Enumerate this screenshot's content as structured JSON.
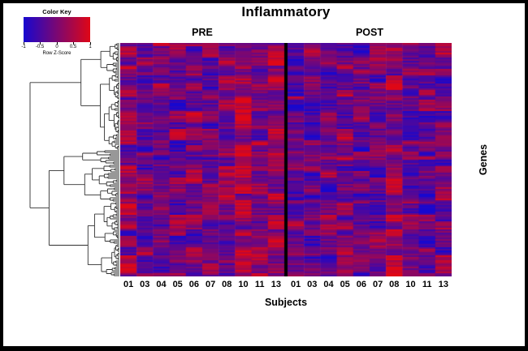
{
  "title": "Inflammatory",
  "color_key": {
    "title": "Color Key",
    "axis_label": "Row Z-Score",
    "ticks": [
      "-1",
      "-0.5",
      "0",
      "0.5",
      "1"
    ],
    "gradient_start": "#1707cf",
    "gradient_end": "#df0716"
  },
  "groups": [
    {
      "label": "PRE"
    },
    {
      "label": "POST"
    }
  ],
  "x_axis": {
    "label": "Subjects",
    "tick_labels": [
      "01",
      "03",
      "04",
      "05",
      "06",
      "07",
      "08",
      "10",
      "11",
      "13"
    ]
  },
  "y_axis": {
    "label": "Genes"
  },
  "chart_data": {
    "type": "heatmap",
    "title": "Inflammatory",
    "xlabel": "Subjects",
    "ylabel": "Genes",
    "groups": [
      "PRE",
      "POST"
    ],
    "subjects": [
      "01",
      "03",
      "04",
      "05",
      "06",
      "07",
      "08",
      "10",
      "11",
      "13"
    ],
    "columns_per_group": 10,
    "gene_rows_estimate": 144,
    "value_scale": {
      "label": "Row Z-Score",
      "min": -1,
      "max": 1,
      "tick_values": [
        -1,
        -0.5,
        0,
        0.5,
        1
      ],
      "min_color": "#1707cf",
      "mid_color": "#7b0773",
      "max_color": "#df0716"
    },
    "group_separator_color": "#000000",
    "row_dendrogram": {
      "side": "left",
      "line_color": "#303030"
    },
    "render_seed": 20,
    "legend_position": "top-left",
    "grid": false
  }
}
